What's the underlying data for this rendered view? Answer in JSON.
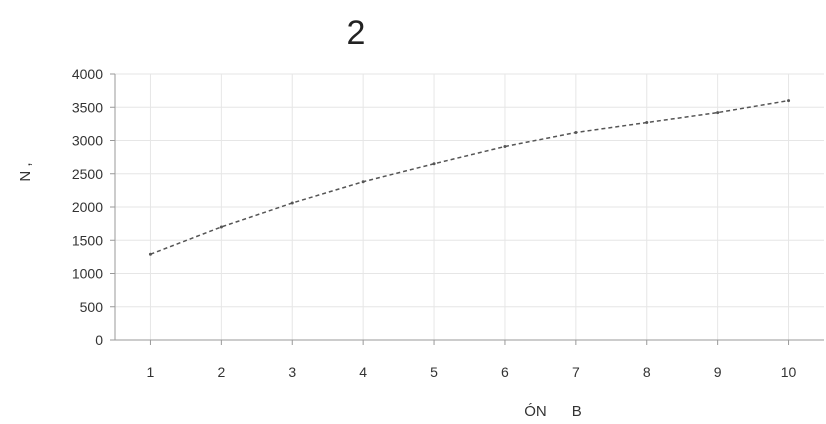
{
  "chart_data": {
    "type": "line",
    "title": "2",
    "xlabel": "ÓN      B",
    "ylabel": "N  ,",
    "x": [
      1,
      2,
      3,
      4,
      5,
      6,
      7,
      8,
      9,
      10
    ],
    "series": [
      {
        "values": [
          1290,
          1700,
          2060,
          2380,
          2650,
          2910,
          3120,
          3270,
          3420,
          3600
        ],
        "color": "#555555",
        "style": "dashed"
      }
    ],
    "x_ticks": [
      "1",
      "2",
      "3",
      "4",
      "5",
      "6",
      "7",
      "8",
      "9",
      "10"
    ],
    "y_ticks": [
      "0",
      "500",
      "1000",
      "1500",
      "2000",
      "2500",
      "3000",
      "3500",
      "4000"
    ],
    "ylim": [
      0,
      4000
    ],
    "xlim": [
      0.5,
      10.5
    ],
    "grid": true,
    "legend": "none"
  }
}
